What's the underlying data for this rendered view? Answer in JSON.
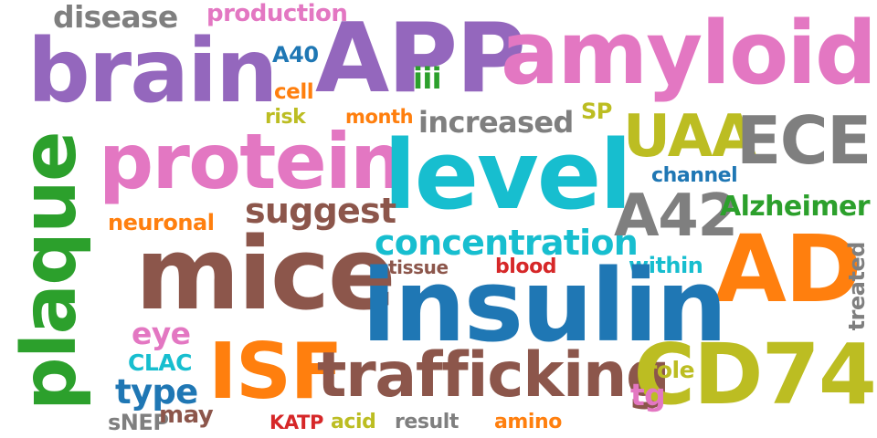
{
  "colors": {
    "purple": "#9467bd",
    "pink": "#e377c2",
    "teal": "#17becf",
    "brown": "#8c564b",
    "blue": "#1f77b4",
    "orange": "#ff7f0e",
    "green": "#2ca02c",
    "olive": "#bcbd22",
    "gray": "#7f7f7f",
    "red": "#d62728"
  },
  "words": [
    {
      "text": "disease",
      "color": "#7f7f7f"
    },
    {
      "text": "production",
      "color": "#e377c2"
    },
    {
      "text": "brain",
      "color": "#9467bd"
    },
    {
      "text": "APP",
      "color": "#9467bd"
    },
    {
      "text": "amyloid",
      "color": "#e377c2"
    },
    {
      "text": "A40",
      "color": "#1f77b4"
    },
    {
      "text": "iii",
      "color": "#2ca02c"
    },
    {
      "text": "cell",
      "color": "#ff7f0e"
    },
    {
      "text": "risk",
      "color": "#bcbd22"
    },
    {
      "text": "month",
      "color": "#ff7f0e"
    },
    {
      "text": "increased",
      "color": "#7f7f7f"
    },
    {
      "text": "SP",
      "color": "#bcbd22"
    },
    {
      "text": "protein",
      "color": "#e377c2"
    },
    {
      "text": "level",
      "color": "#17becf"
    },
    {
      "text": "UAA",
      "color": "#bcbd22"
    },
    {
      "text": "ECE",
      "color": "#7f7f7f"
    },
    {
      "text": "channel",
      "color": "#1f77b4"
    },
    {
      "text": "plaque",
      "color": "#2ca02c"
    },
    {
      "text": "suggest",
      "color": "#8c564b"
    },
    {
      "text": "A42",
      "color": "#7f7f7f"
    },
    {
      "text": "Alzheimer",
      "color": "#2ca02c"
    },
    {
      "text": "neuronal",
      "color": "#ff7f0e"
    },
    {
      "text": "concentration",
      "color": "#17becf"
    },
    {
      "text": "mice",
      "color": "#8c564b"
    },
    {
      "text": "tissue",
      "color": "#8c564b"
    },
    {
      "text": "blood",
      "color": "#d62728"
    },
    {
      "text": "within",
      "color": "#17becf"
    },
    {
      "text": "AD",
      "color": "#ff7f0e"
    },
    {
      "text": "treated",
      "color": "#7f7f7f"
    },
    {
      "text": "insulin",
      "color": "#1f77b4"
    },
    {
      "text": "eye",
      "color": "#e377c2"
    },
    {
      "text": "CLAC",
      "color": "#17becf"
    },
    {
      "text": "ISF",
      "color": "#ff7f0e"
    },
    {
      "text": "trafficking",
      "color": "#8c564b"
    },
    {
      "text": "role",
      "color": "#bcbd22"
    },
    {
      "text": "CD74",
      "color": "#bcbd22"
    },
    {
      "text": "type",
      "color": "#1f77b4"
    },
    {
      "text": "tg",
      "color": "#e377c2"
    },
    {
      "text": "sNEP",
      "color": "#7f7f7f"
    },
    {
      "text": "may",
      "color": "#8c564b"
    },
    {
      "text": "KATP",
      "color": "#d62728"
    },
    {
      "text": "acid",
      "color": "#bcbd22"
    },
    {
      "text": "result",
      "color": "#7f7f7f"
    },
    {
      "text": "amino",
      "color": "#ff7f0e"
    }
  ]
}
